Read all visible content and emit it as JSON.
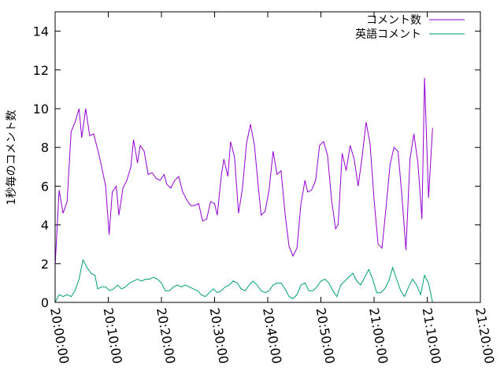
{
  "chart_data": {
    "type": "line",
    "ylabel": "1秒毎のコメント数",
    "ylim": [
      0,
      15
    ],
    "yticks": [
      0,
      2,
      4,
      6,
      8,
      10,
      12,
      14
    ],
    "xlim": [
      "20:00:00",
      "21:20:00"
    ],
    "xticks": [
      "20:00:00",
      "20:10:00",
      "20:20:00",
      "20:30:00",
      "20:40:00",
      "20:50:00",
      "21:00:00",
      "21:10:00",
      "21:20:00"
    ],
    "legend_position": "top-right",
    "grid": false,
    "series": [
      {
        "name": "コメント数",
        "color": "#9400d3",
        "points": [
          [
            "20:00:00",
            1.9
          ],
          [
            "20:00:45",
            5.8
          ],
          [
            "20:01:30",
            4.6
          ],
          [
            "20:02:15",
            5.2
          ],
          [
            "20:03:00",
            8.8
          ],
          [
            "20:03:45",
            9.3
          ],
          [
            "20:04:30",
            10.0
          ],
          [
            "20:05:00",
            8.5
          ],
          [
            "20:05:45",
            10.0
          ],
          [
            "20:06:30",
            8.6
          ],
          [
            "20:07:15",
            8.7
          ],
          [
            "20:08:00",
            7.9
          ],
          [
            "20:08:45",
            7.0
          ],
          [
            "20:09:30",
            6.0
          ],
          [
            "20:10:10",
            3.5
          ],
          [
            "20:10:45",
            5.7
          ],
          [
            "20:11:30",
            6.0
          ],
          [
            "20:12:00",
            4.5
          ],
          [
            "20:12:45",
            5.9
          ],
          [
            "20:13:30",
            6.3
          ],
          [
            "20:14:15",
            7.0
          ],
          [
            "20:14:45",
            8.4
          ],
          [
            "20:15:30",
            7.2
          ],
          [
            "20:16:00",
            8.1
          ],
          [
            "20:16:45",
            7.8
          ],
          [
            "20:17:30",
            6.6
          ],
          [
            "20:18:15",
            6.7
          ],
          [
            "20:19:00",
            6.4
          ],
          [
            "20:19:45",
            6.3
          ],
          [
            "20:20:30",
            6.6
          ],
          [
            "20:21:00",
            6.1
          ],
          [
            "20:21:45",
            5.9
          ],
          [
            "20:22:30",
            6.3
          ],
          [
            "20:23:15",
            6.5
          ],
          [
            "20:24:00",
            5.7
          ],
          [
            "20:24:45",
            5.3
          ],
          [
            "20:25:30",
            5.0
          ],
          [
            "20:26:15",
            5.0
          ],
          [
            "20:27:00",
            5.1
          ],
          [
            "20:27:45",
            4.2
          ],
          [
            "20:28:30",
            4.3
          ],
          [
            "20:29:15",
            5.2
          ],
          [
            "20:30:00",
            5.1
          ],
          [
            "20:30:30",
            4.5
          ],
          [
            "20:31:15",
            6.5
          ],
          [
            "20:31:45",
            7.4
          ],
          [
            "20:32:30",
            6.5
          ],
          [
            "20:33:00",
            8.3
          ],
          [
            "20:33:45",
            7.5
          ],
          [
            "20:34:30",
            4.6
          ],
          [
            "20:35:15",
            5.9
          ],
          [
            "20:36:00",
            8.2
          ],
          [
            "20:36:45",
            9.2
          ],
          [
            "20:37:30",
            8.1
          ],
          [
            "20:38:15",
            5.9
          ],
          [
            "20:38:45",
            4.5
          ],
          [
            "20:39:30",
            4.7
          ],
          [
            "20:40:15",
            5.8
          ],
          [
            "20:41:00",
            7.8
          ],
          [
            "20:41:45",
            6.6
          ],
          [
            "20:42:30",
            6.8
          ],
          [
            "20:43:15",
            4.6
          ],
          [
            "20:44:00",
            2.9
          ],
          [
            "20:44:45",
            2.4
          ],
          [
            "20:45:30",
            2.8
          ],
          [
            "20:46:15",
            5.1
          ],
          [
            "20:47:00",
            6.3
          ],
          [
            "20:47:30",
            5.7
          ],
          [
            "20:48:15",
            5.8
          ],
          [
            "20:49:00",
            6.3
          ],
          [
            "20:49:45",
            8.1
          ],
          [
            "20:50:30",
            8.3
          ],
          [
            "20:51:15",
            7.6
          ],
          [
            "20:52:00",
            5.3
          ],
          [
            "20:52:45",
            3.8
          ],
          [
            "20:53:15",
            4.0
          ],
          [
            "20:54:00",
            7.7
          ],
          [
            "20:54:45",
            6.8
          ],
          [
            "20:55:30",
            8.1
          ],
          [
            "20:56:15",
            7.4
          ],
          [
            "20:57:00",
            6.0
          ],
          [
            "20:57:45",
            7.5
          ],
          [
            "20:58:30",
            9.3
          ],
          [
            "20:59:15",
            8.2
          ],
          [
            "21:00:00",
            5.3
          ],
          [
            "21:00:45",
            3.0
          ],
          [
            "21:01:30",
            2.8
          ],
          [
            "21:02:15",
            4.9
          ],
          [
            "21:03:00",
            7.1
          ],
          [
            "21:03:45",
            8.0
          ],
          [
            "21:04:30",
            7.8
          ],
          [
            "21:05:15",
            5.5
          ],
          [
            "21:06:00",
            2.7
          ],
          [
            "21:06:45",
            7.4
          ],
          [
            "21:07:30",
            8.7
          ],
          [
            "21:08:15",
            7.2
          ],
          [
            "21:09:00",
            4.3
          ],
          [
            "21:09:30",
            11.6
          ],
          [
            "21:10:15",
            5.4
          ],
          [
            "21:11:00",
            9.0
          ]
        ]
      },
      {
        "name": "英語コメント",
        "color": "#009e73",
        "points": [
          [
            "20:00:00",
            0.0
          ],
          [
            "20:00:45",
            0.4
          ],
          [
            "20:01:30",
            0.3
          ],
          [
            "20:02:15",
            0.4
          ],
          [
            "20:03:00",
            0.3
          ],
          [
            "20:03:45",
            0.6
          ],
          [
            "20:04:30",
            1.2
          ],
          [
            "20:05:15",
            2.2
          ],
          [
            "20:06:00",
            1.8
          ],
          [
            "20:06:45",
            1.5
          ],
          [
            "20:07:30",
            1.4
          ],
          [
            "20:08:00",
            0.7
          ],
          [
            "20:08:45",
            0.8
          ],
          [
            "20:09:30",
            0.8
          ],
          [
            "20:10:15",
            0.6
          ],
          [
            "20:11:00",
            0.7
          ],
          [
            "20:11:45",
            0.9
          ],
          [
            "20:12:30",
            0.7
          ],
          [
            "20:13:15",
            0.8
          ],
          [
            "20:14:00",
            1.0
          ],
          [
            "20:14:45",
            1.1
          ],
          [
            "20:15:30",
            1.2
          ],
          [
            "20:16:15",
            1.1
          ],
          [
            "20:17:00",
            1.2
          ],
          [
            "20:17:45",
            1.2
          ],
          [
            "20:18:30",
            1.3
          ],
          [
            "20:19:15",
            1.2
          ],
          [
            "20:20:00",
            1.0
          ],
          [
            "20:20:45",
            0.6
          ],
          [
            "20:21:30",
            0.6
          ],
          [
            "20:22:15",
            0.8
          ],
          [
            "20:23:00",
            0.9
          ],
          [
            "20:23:45",
            0.8
          ],
          [
            "20:24:30",
            0.9
          ],
          [
            "20:25:15",
            0.8
          ],
          [
            "20:26:00",
            0.7
          ],
          [
            "20:26:45",
            0.6
          ],
          [
            "20:27:30",
            0.4
          ],
          [
            "20:28:15",
            0.3
          ],
          [
            "20:29:00",
            0.5
          ],
          [
            "20:29:45",
            0.7
          ],
          [
            "20:30:30",
            0.5
          ],
          [
            "20:31:15",
            0.6
          ],
          [
            "20:32:00",
            0.8
          ],
          [
            "20:32:45",
            0.9
          ],
          [
            "20:33:30",
            1.1
          ],
          [
            "20:34:15",
            1.0
          ],
          [
            "20:35:00",
            0.7
          ],
          [
            "20:35:45",
            0.6
          ],
          [
            "20:36:30",
            0.9
          ],
          [
            "20:37:15",
            1.1
          ],
          [
            "20:38:00",
            0.9
          ],
          [
            "20:38:45",
            0.6
          ],
          [
            "20:39:30",
            0.5
          ],
          [
            "20:40:15",
            0.6
          ],
          [
            "20:41:00",
            0.9
          ],
          [
            "20:41:45",
            1.0
          ],
          [
            "20:42:30",
            1.0
          ],
          [
            "20:43:15",
            0.7
          ],
          [
            "20:44:00",
            0.3
          ],
          [
            "20:44:45",
            0.2
          ],
          [
            "20:45:30",
            0.4
          ],
          [
            "20:46:15",
            0.9
          ],
          [
            "20:47:00",
            1.0
          ],
          [
            "20:47:45",
            0.6
          ],
          [
            "20:48:30",
            0.6
          ],
          [
            "20:49:15",
            0.8
          ],
          [
            "20:50:00",
            1.1
          ],
          [
            "20:50:45",
            1.2
          ],
          [
            "20:51:30",
            1.0
          ],
          [
            "20:52:15",
            0.6
          ],
          [
            "20:53:00",
            0.3
          ],
          [
            "20:53:45",
            0.9
          ],
          [
            "20:54:30",
            1.1
          ],
          [
            "20:55:15",
            1.3
          ],
          [
            "20:56:00",
            1.5
          ],
          [
            "20:56:45",
            1.1
          ],
          [
            "20:57:30",
            0.9
          ],
          [
            "20:58:15",
            1.3
          ],
          [
            "20:59:00",
            1.7
          ],
          [
            "20:59:45",
            1.2
          ],
          [
            "21:00:30",
            0.5
          ],
          [
            "21:01:15",
            0.5
          ],
          [
            "21:02:00",
            0.7
          ],
          [
            "21:02:45",
            1.1
          ],
          [
            "21:03:30",
            1.8
          ],
          [
            "21:04:15",
            1.2
          ],
          [
            "21:05:00",
            0.6
          ],
          [
            "21:05:45",
            0.3
          ],
          [
            "21:06:30",
            0.8
          ],
          [
            "21:07:15",
            1.2
          ],
          [
            "21:08:00",
            0.9
          ],
          [
            "21:08:45",
            0.4
          ],
          [
            "21:09:30",
            1.4
          ],
          [
            "21:10:15",
            1.0
          ],
          [
            "21:11:00",
            0.0
          ]
        ]
      }
    ]
  }
}
